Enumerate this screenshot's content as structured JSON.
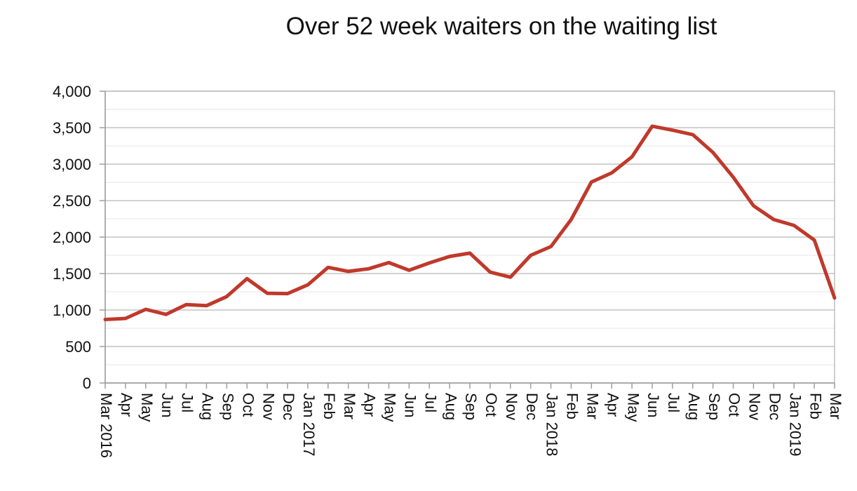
{
  "chart_data": {
    "type": "line",
    "title": "Over 52 week waiters on the waiting list",
    "xlabel": "",
    "ylabel": "",
    "ylim": [
      0,
      4000
    ],
    "y_ticks": [
      "0",
      "500",
      "1,000",
      "1,500",
      "2,000",
      "2,500",
      "3,000",
      "3,500",
      "4,000"
    ],
    "grid": true,
    "legend": "none",
    "line_color": "#c0392b",
    "categories": [
      {
        "month": "Mar",
        "year": "2016"
      },
      {
        "month": "Apr",
        "year": ""
      },
      {
        "month": "May",
        "year": ""
      },
      {
        "month": "Jun",
        "year": ""
      },
      {
        "month": "Jul",
        "year": ""
      },
      {
        "month": "Aug",
        "year": ""
      },
      {
        "month": "Sep",
        "year": ""
      },
      {
        "month": "Oct",
        "year": ""
      },
      {
        "month": "Nov",
        "year": ""
      },
      {
        "month": "Dec",
        "year": ""
      },
      {
        "month": "Jan",
        "year": "2017"
      },
      {
        "month": "Feb",
        "year": ""
      },
      {
        "month": "Mar",
        "year": ""
      },
      {
        "month": "Apr",
        "year": ""
      },
      {
        "month": "May",
        "year": ""
      },
      {
        "month": "Jun",
        "year": ""
      },
      {
        "month": "Jul",
        "year": ""
      },
      {
        "month": "Aug",
        "year": ""
      },
      {
        "month": "Sep",
        "year": ""
      },
      {
        "month": "Oct",
        "year": ""
      },
      {
        "month": "Nov",
        "year": ""
      },
      {
        "month": "Dec",
        "year": ""
      },
      {
        "month": "Jan",
        "year": "2018"
      },
      {
        "month": "Feb",
        "year": ""
      },
      {
        "month": "Mar",
        "year": ""
      },
      {
        "month": "Apr",
        "year": ""
      },
      {
        "month": "May",
        "year": ""
      },
      {
        "month": "Jun",
        "year": ""
      },
      {
        "month": "Jul",
        "year": ""
      },
      {
        "month": "Aug",
        "year": ""
      },
      {
        "month": "Sep",
        "year": ""
      },
      {
        "month": "Oct",
        "year": ""
      },
      {
        "month": "Nov",
        "year": ""
      },
      {
        "month": "Dec",
        "year": ""
      },
      {
        "month": "Jan",
        "year": "2019"
      },
      {
        "month": "Feb",
        "year": ""
      },
      {
        "month": "Mar",
        "year": ""
      }
    ],
    "values": [
      870,
      885,
      1010,
      940,
      1075,
      1060,
      1185,
      1430,
      1230,
      1225,
      1345,
      1585,
      1530,
      1565,
      1650,
      1545,
      1645,
      1735,
      1780,
      1520,
      1450,
      1750,
      1870,
      2240,
      2755,
      2880,
      3100,
      3520,
      3465,
      3405,
      3160,
      2820,
      2430,
      2240,
      2160,
      1960,
      1165
    ]
  }
}
